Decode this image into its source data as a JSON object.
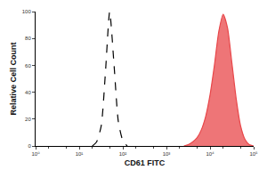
{
  "chart_data": {
    "type": "line",
    "x_label": "CD61 FITC",
    "y_label": "Relative Cell Count",
    "log": "x",
    "grid": false,
    "xlim": [
      1,
      100000
    ],
    "xticks": [
      {
        "value": 1,
        "label": "10⁰"
      },
      {
        "value": 10,
        "label": "10¹"
      },
      {
        "value": 100,
        "label": "10²"
      },
      {
        "value": 1000,
        "label": "10³"
      },
      {
        "value": 10000,
        "label": "10⁴"
      },
      {
        "value": 100000,
        "label": "10⁵"
      }
    ],
    "ylim": [
      0,
      100
    ],
    "yticks": [
      0,
      20,
      40,
      60,
      80,
      100
    ],
    "x": [
      20,
      25,
      32,
      40,
      50,
      63,
      79,
      100,
      126,
      2512,
      3162,
      3981,
      5012,
      6310,
      7943,
      10000,
      12589,
      15849,
      19953,
      25119,
      31623,
      39811,
      50119,
      63096,
      79433,
      100000
    ],
    "series": [
      {
        "type": "line",
        "color": "#000000",
        "line_style": "dashed",
        "values": [
          0,
          3,
          15,
          55,
          100,
          60,
          18,
          4,
          0,
          null,
          null,
          null,
          null,
          null,
          null,
          null,
          null,
          null,
          null,
          null,
          null,
          null,
          null,
          null,
          null,
          null
        ]
      },
      {
        "type": "area",
        "color": "#e8474a",
        "line_style": "solid",
        "values": [
          null,
          null,
          null,
          null,
          null,
          null,
          null,
          null,
          null,
          0,
          1,
          3,
          6,
          12,
          22,
          38,
          60,
          85,
          98,
          88,
          62,
          35,
          15,
          5,
          1,
          0
        ]
      }
    ]
  }
}
